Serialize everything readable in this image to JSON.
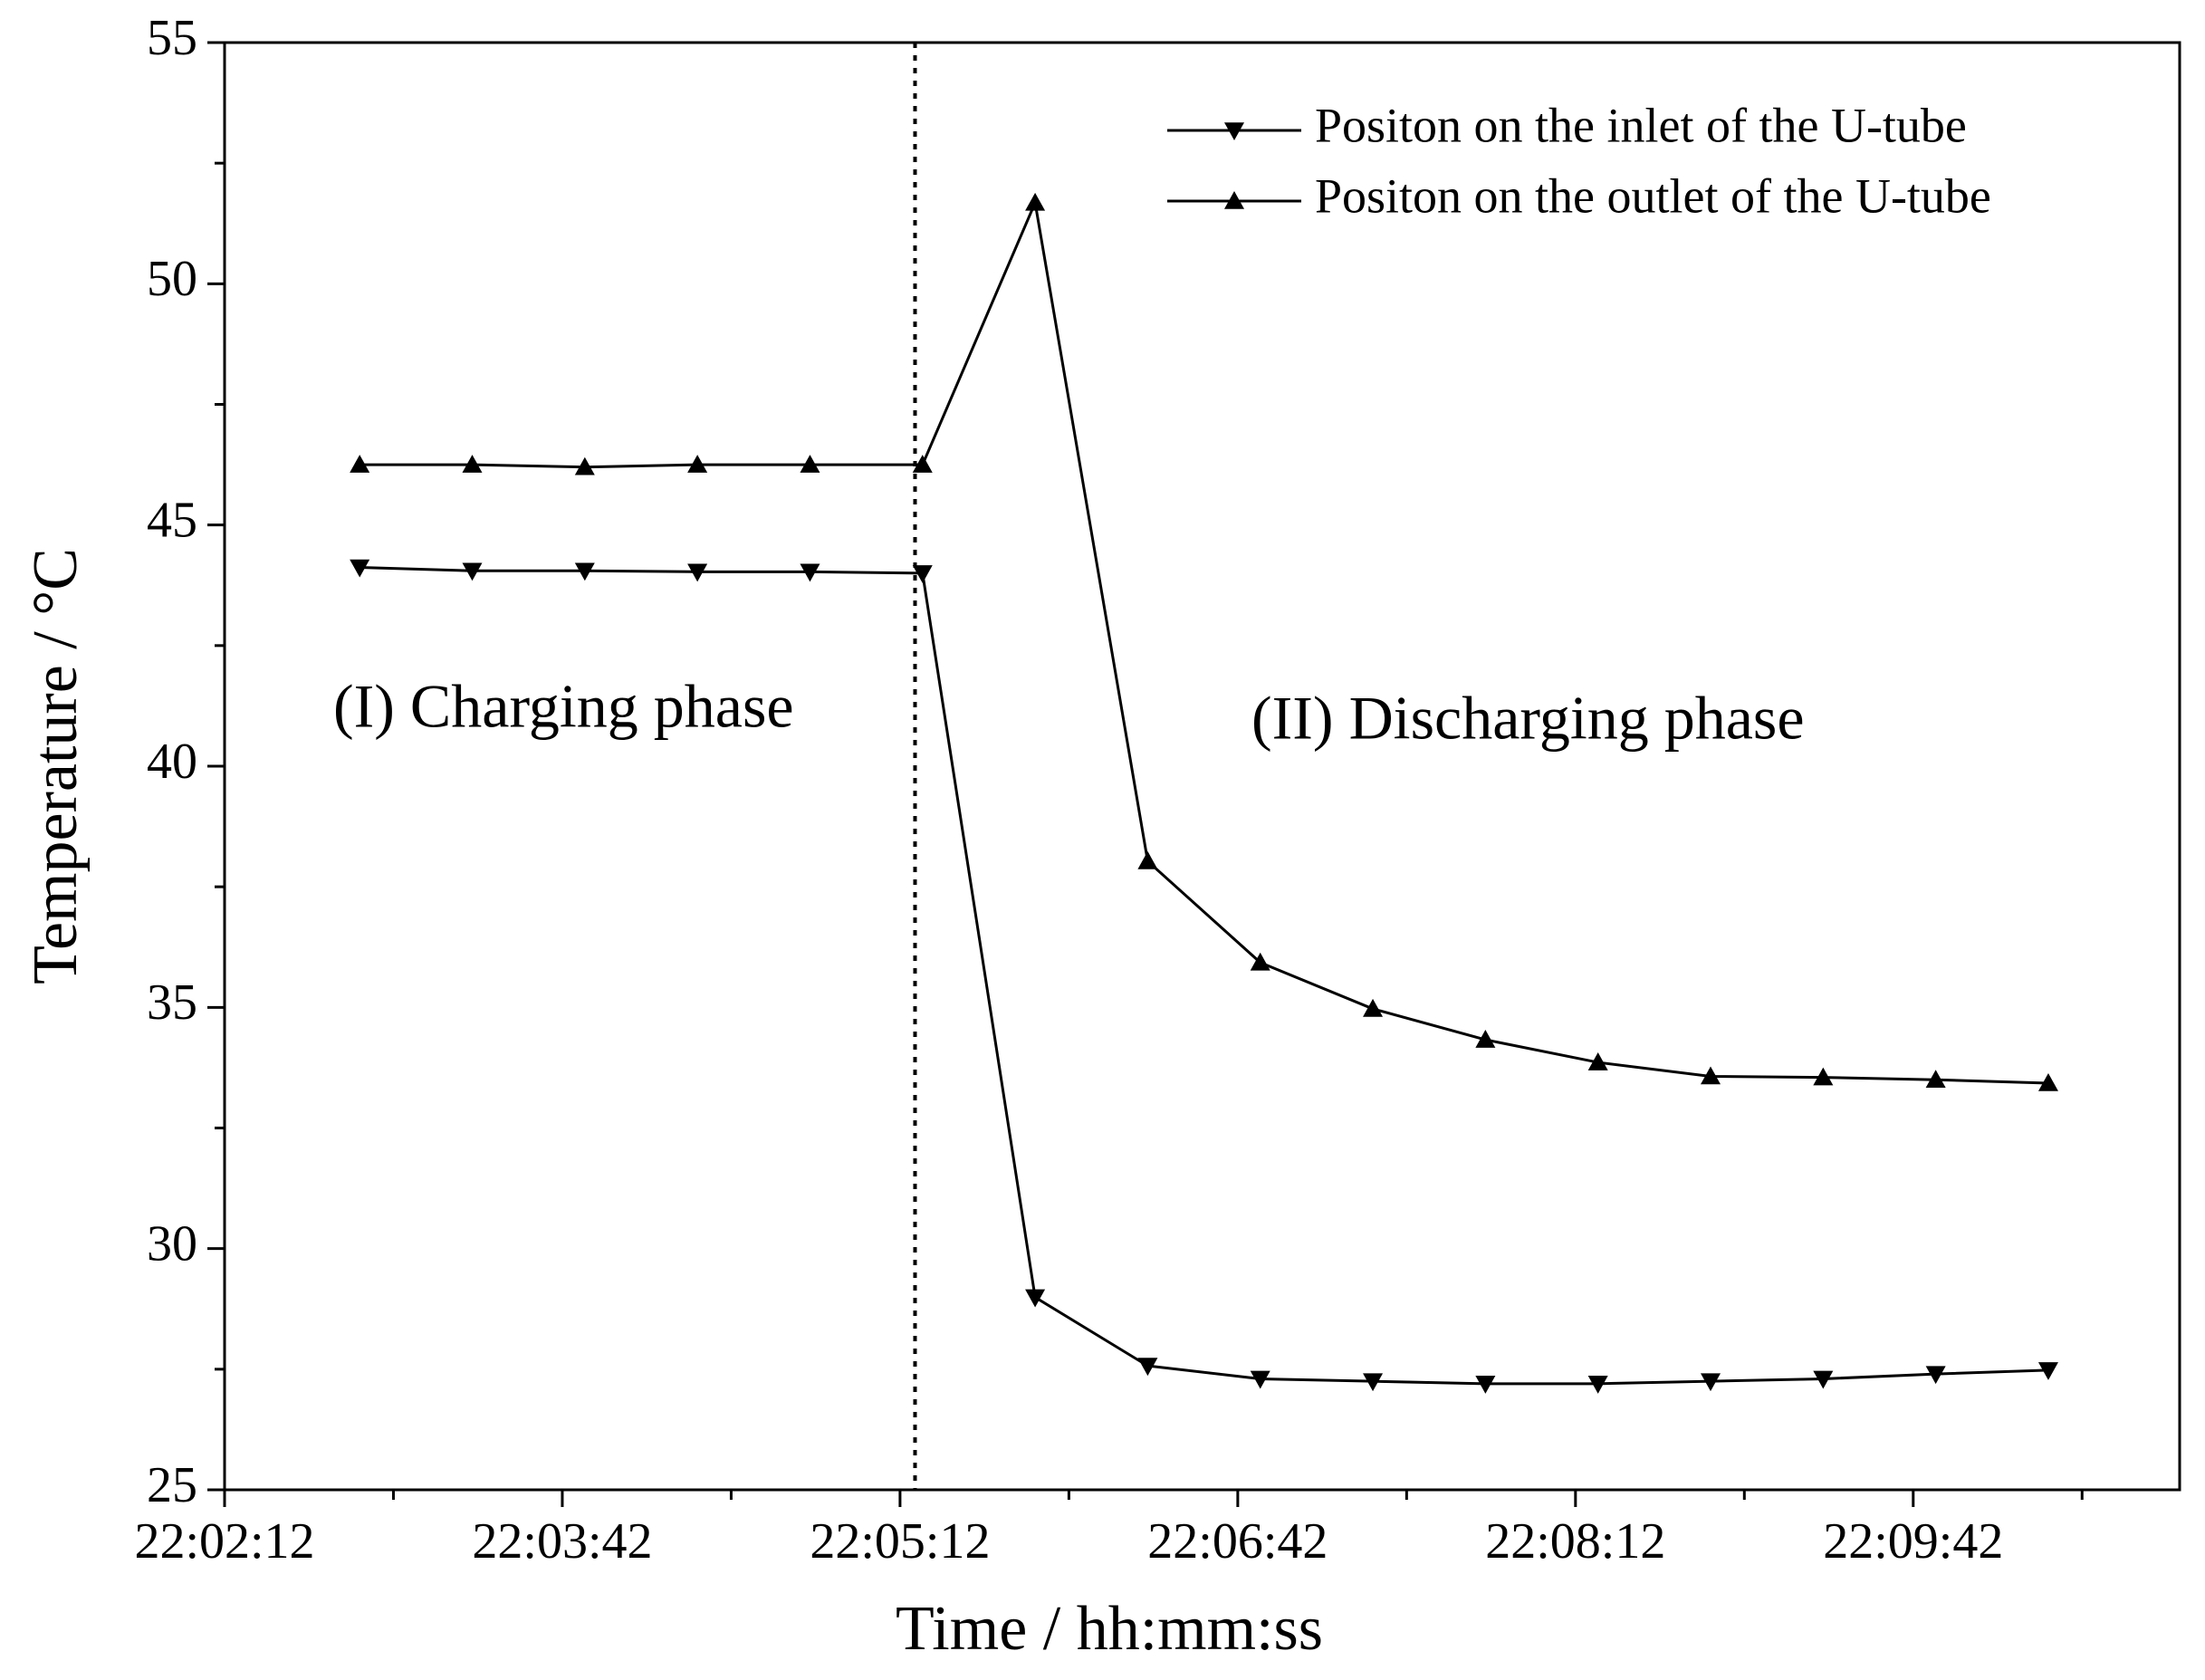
{
  "chart_data": {
    "type": "line",
    "x_label": "Time / hh:mm:ss",
    "y_label": "Temperature / °C",
    "annotations": [
      "(I) Charging phase",
      "(II) Discharging phase"
    ],
    "x": [
      79368,
      79398,
      79428,
      79458,
      79488,
      79518,
      79548,
      79578,
      79608,
      79638,
      79668,
      79698,
      79728,
      79758,
      79788,
      79818
    ],
    "series": [
      {
        "name": "Positon on the inlet of the U-tube",
        "color": "#000000",
        "marker": "triangle-down",
        "values": [
          44.12,
          44.05,
          44.05,
          44.03,
          44.03,
          44.0,
          28.99,
          27.57,
          27.3,
          27.25,
          27.2,
          27.2,
          27.25,
          27.3,
          27.4,
          27.48
        ]
      },
      {
        "name": "Positon on the outlet of the U-tube",
        "color": "#000000",
        "marker": "triangle-up",
        "values": [
          46.25,
          46.25,
          46.2,
          46.25,
          46.25,
          46.25,
          51.68,
          38.03,
          35.93,
          34.97,
          34.33,
          33.86,
          33.57,
          33.55,
          33.5,
          33.43
        ]
      }
    ],
    "divider_x": 79516,
    "xlim": [
      79332,
      79853
    ],
    "xticks": [
      {
        "value": 79332,
        "label": "22:02:12"
      },
      {
        "value": 79422,
        "label": "22:03:42"
      },
      {
        "value": 79512,
        "label": "22:05:12"
      },
      {
        "value": 79602,
        "label": "22:06:42"
      },
      {
        "value": 79692,
        "label": "22:08:12"
      },
      {
        "value": 79782,
        "label": "22:09:42"
      }
    ],
    "ylim": [
      25,
      55
    ],
    "yticks": [
      25,
      30,
      35,
      40,
      45,
      50,
      55
    ],
    "grid": false,
    "legend": "top-right"
  }
}
